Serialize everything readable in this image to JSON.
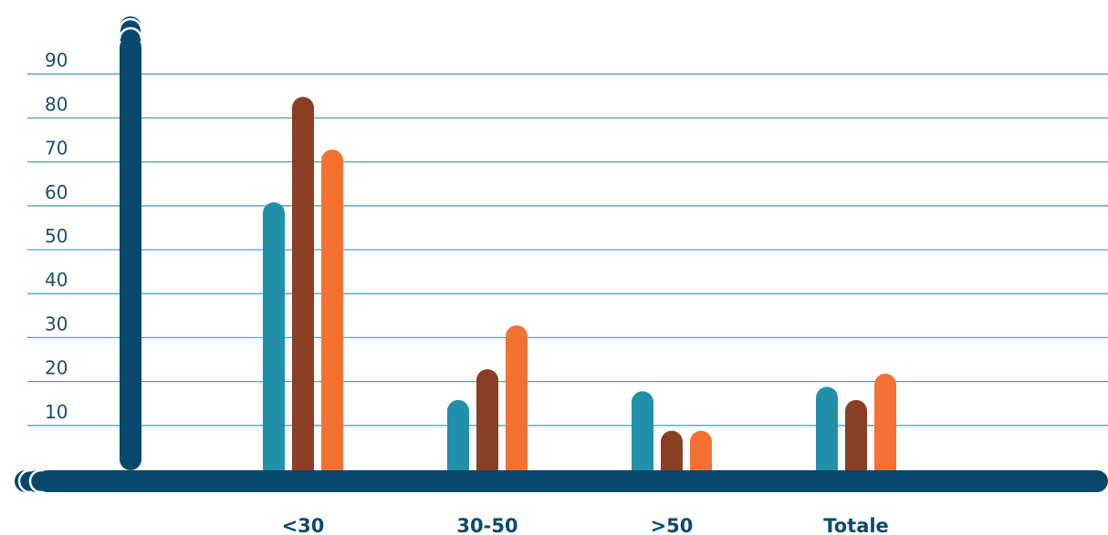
{
  "colors": {
    "axis": "#08486c",
    "grid": "#4aa7b4",
    "series": [
      "#2290a8",
      "#8a3f24",
      "#f37233"
    ]
  },
  "chart_data": {
    "type": "bar",
    "title": "",
    "xlabel": "",
    "ylabel": "",
    "categories": [
      "<30",
      "30-50",
      ">50",
      "Totale"
    ],
    "series": [
      {
        "values": [
          61,
          16,
          18,
          19
        ]
      },
      {
        "values": [
          85,
          23,
          9,
          16
        ]
      },
      {
        "values": [
          73,
          33,
          9,
          22
        ]
      }
    ],
    "yticks": [
      "10",
      "20",
      "30",
      "40",
      "50",
      "60",
      "70",
      "80",
      "90"
    ],
    "ylim": [
      0,
      100
    ],
    "grid": true,
    "legend": "none"
  }
}
